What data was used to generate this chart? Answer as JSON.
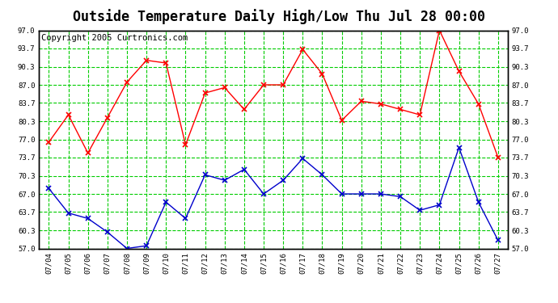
{
  "title": "Outside Temperature Daily High/Low Thu Jul 28 00:00",
  "copyright": "Copyright 2005 Curtronics.com",
  "x_labels": [
    "07/04",
    "07/05",
    "07/06",
    "07/07",
    "07/08",
    "07/09",
    "07/10",
    "07/11",
    "07/12",
    "07/13",
    "07/14",
    "07/15",
    "07/16",
    "07/17",
    "07/18",
    "07/19",
    "07/20",
    "07/21",
    "07/22",
    "07/23",
    "07/24",
    "07/25",
    "07/26",
    "07/27"
  ],
  "high_temps": [
    76.5,
    81.5,
    74.5,
    81.0,
    87.5,
    91.5,
    91.0,
    76.0,
    85.5,
    86.5,
    82.5,
    87.0,
    87.0,
    93.5,
    89.0,
    80.5,
    84.0,
    83.5,
    82.5,
    81.5,
    97.0,
    89.5,
    83.5,
    73.7
  ],
  "low_temps": [
    68.0,
    63.5,
    62.5,
    60.0,
    57.0,
    57.5,
    65.5,
    62.5,
    70.5,
    69.5,
    71.5,
    67.0,
    69.5,
    73.5,
    70.5,
    67.0,
    67.0,
    67.0,
    66.5,
    64.0,
    65.0,
    75.5,
    65.5,
    58.5
  ],
  "high_color": "#FF0000",
  "low_color": "#0000CC",
  "grid_color": "#00CC00",
  "bg_color": "#FFFFFF",
  "plot_bg_color": "#FFFFFF",
  "border_color": "#000000",
  "ylim": [
    57.0,
    97.0
  ],
  "yticks": [
    57.0,
    60.3,
    63.7,
    67.0,
    70.3,
    73.7,
    77.0,
    80.3,
    83.7,
    87.0,
    90.3,
    93.7,
    97.0
  ],
  "title_fontsize": 12,
  "copyright_fontsize": 7.5
}
